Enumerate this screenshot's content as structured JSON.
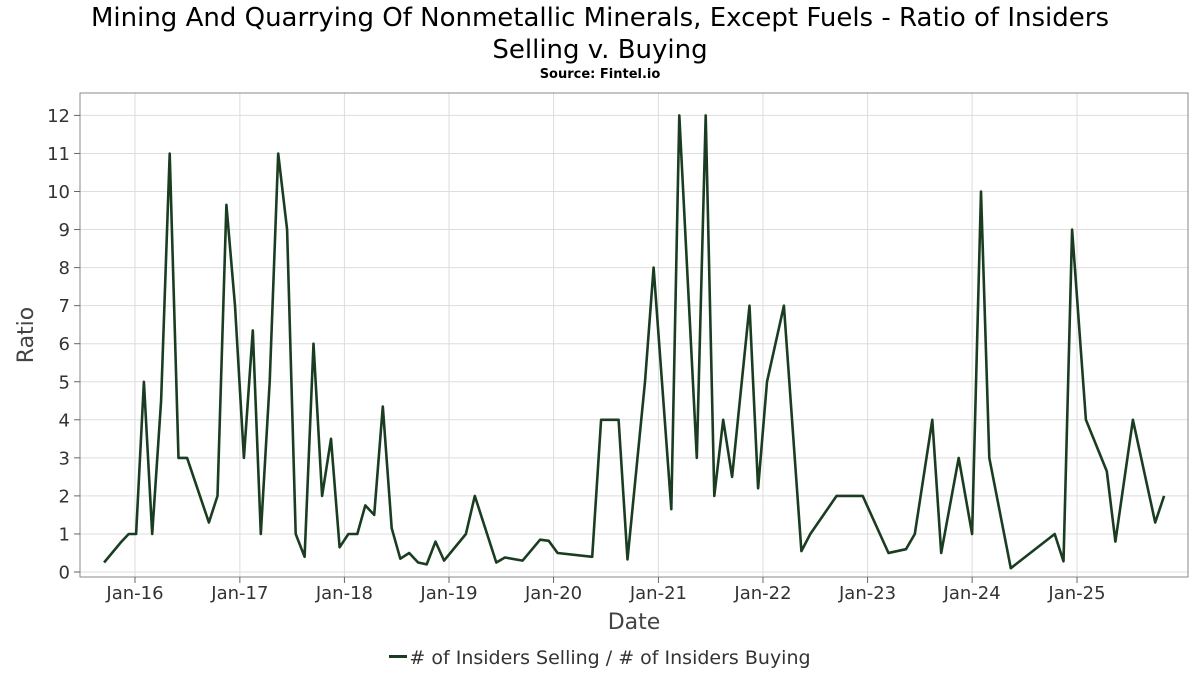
{
  "title_line1": "Mining And Quarrying Of Nonmetallic Minerals, Except Fuels - Ratio of Insiders",
  "title_line2": "Selling v. Buying",
  "source": "Source: Fintel.io",
  "colors": {
    "line": "#1a3d22",
    "grid": "#dddddd",
    "frame": "#888888"
  },
  "chart_data": {
    "type": "line",
    "xlabel": "Date",
    "ylabel": "Ratio",
    "ylim": [
      0,
      12.5
    ],
    "yticks": [
      0,
      1,
      2,
      3,
      4,
      5,
      6,
      7,
      8,
      9,
      10,
      11,
      12
    ],
    "xticks": [
      "Jan-16",
      "Jan-17",
      "Jan-18",
      "Jan-19",
      "Jan-20",
      "Jan-21",
      "Jan-22",
      "Jan-23",
      "Jan-24",
      "Jan-25"
    ],
    "grid": true,
    "legend_position": "bottom",
    "series": [
      {
        "name": "# of Insiders Selling / # of Insiders Buying",
        "points": [
          [
            "2015-09-15",
            0.25
          ],
          [
            "2015-11-15",
            0.8
          ],
          [
            "2015-12-10",
            1.0
          ],
          [
            "2016-01-05",
            1.0
          ],
          [
            "2016-02-01",
            5.0
          ],
          [
            "2016-03-01",
            1.0
          ],
          [
            "2016-04-01",
            4.5
          ],
          [
            "2016-05-01",
            11.0
          ],
          [
            "2016-06-01",
            3.0
          ],
          [
            "2016-07-01",
            3.0
          ],
          [
            "2016-09-15",
            1.3
          ],
          [
            "2016-10-15",
            2.0
          ],
          [
            "2016-11-15",
            9.65
          ],
          [
            "2016-12-15",
            7.0
          ],
          [
            "2017-01-15",
            3.0
          ],
          [
            "2017-02-15",
            6.35
          ],
          [
            "2017-03-15",
            1.0
          ],
          [
            "2017-04-15",
            5.0
          ],
          [
            "2017-05-15",
            11.0
          ],
          [
            "2017-06-15",
            9.0
          ],
          [
            "2017-07-15",
            1.0
          ],
          [
            "2017-08-15",
            0.4
          ],
          [
            "2017-09-15",
            6.0
          ],
          [
            "2017-10-15",
            2.0
          ],
          [
            "2017-11-15",
            3.5
          ],
          [
            "2017-12-15",
            0.65
          ],
          [
            "2018-01-15",
            1.0
          ],
          [
            "2018-02-15",
            1.0
          ],
          [
            "2018-03-15",
            1.75
          ],
          [
            "2018-04-15",
            1.5
          ],
          [
            "2018-05-15",
            4.35
          ],
          [
            "2018-06-15",
            1.15
          ],
          [
            "2018-07-15",
            0.35
          ],
          [
            "2018-08-15",
            0.5
          ],
          [
            "2018-09-15",
            0.25
          ],
          [
            "2018-10-15",
            0.2
          ],
          [
            "2018-11-15",
            0.8
          ],
          [
            "2018-12-15",
            0.3
          ],
          [
            "2019-03-01",
            1.0
          ],
          [
            "2019-04-01",
            2.0
          ],
          [
            "2019-06-15",
            0.25
          ],
          [
            "2019-07-15",
            0.38
          ],
          [
            "2019-09-15",
            0.3
          ],
          [
            "2019-11-15",
            0.85
          ],
          [
            "2019-12-15",
            0.82
          ],
          [
            "2020-01-15",
            0.5
          ],
          [
            "2020-05-15",
            0.4
          ],
          [
            "2020-06-15",
            4.0
          ],
          [
            "2020-08-15",
            4.0
          ],
          [
            "2020-09-15",
            0.33
          ],
          [
            "2020-11-15",
            5.0
          ],
          [
            "2020-12-15",
            8.0
          ],
          [
            "2021-02-15",
            1.65
          ],
          [
            "2021-03-15",
            12.0
          ],
          [
            "2021-05-15",
            3.0
          ],
          [
            "2021-06-15",
            12.0
          ],
          [
            "2021-07-15",
            2.0
          ],
          [
            "2021-08-15",
            4.0
          ],
          [
            "2021-09-15",
            2.5
          ],
          [
            "2021-11-15",
            7.0
          ],
          [
            "2021-12-15",
            2.2
          ],
          [
            "2022-01-15",
            5.0
          ],
          [
            "2022-03-15",
            7.0
          ],
          [
            "2022-05-15",
            0.55
          ],
          [
            "2022-06-15",
            1.0
          ],
          [
            "2022-09-15",
            2.0
          ],
          [
            "2022-12-15",
            2.0
          ],
          [
            "2023-03-15",
            0.5
          ],
          [
            "2023-05-15",
            0.6
          ],
          [
            "2023-06-15",
            1.0
          ],
          [
            "2023-08-15",
            4.0
          ],
          [
            "2023-09-15",
            0.5
          ],
          [
            "2023-11-15",
            3.0
          ],
          [
            "2024-01-01",
            1.0
          ],
          [
            "2024-02-01",
            10.0
          ],
          [
            "2024-03-01",
            3.0
          ],
          [
            "2024-05-15",
            0.1
          ],
          [
            "2024-10-15",
            1.0
          ],
          [
            "2024-11-15",
            0.28
          ],
          [
            "2024-12-15",
            9.0
          ],
          [
            "2025-02-01",
            4.0
          ],
          [
            "2025-04-15",
            2.65
          ],
          [
            "2025-05-15",
            0.8
          ],
          [
            "2025-07-15",
            4.0
          ],
          [
            "2025-10-01",
            1.3
          ],
          [
            "2025-11-01",
            2.0
          ]
        ]
      }
    ]
  }
}
